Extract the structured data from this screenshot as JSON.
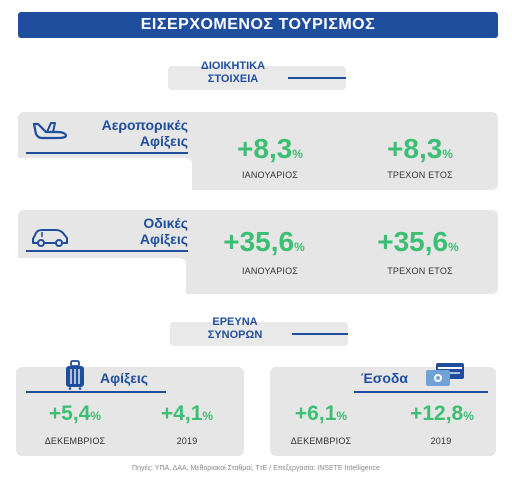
{
  "title": "ΕΙΣΕΡΧΟΜΕΝΟΣ ΤΟΥΡΙΣΜΟΣ",
  "admin_section": {
    "line1": "ΔΙΟΙΚΗΤΙΚΑ",
    "line2": "ΣΤΟΙΧΕΙΑ"
  },
  "air": {
    "title_line1": "Αεροπορικές",
    "title_line2": "Αφίξεις",
    "icon": "airplane-icon",
    "stats": [
      {
        "value": "+8,3",
        "unit": "%",
        "label": "ΙΑΝΟΥΑΡΙΟΣ"
      },
      {
        "value": "+8,3",
        "unit": "%",
        "label": "ΤΡΕΧΟΝ ΕΤΟΣ"
      }
    ]
  },
  "road": {
    "title_line1": "Οδικές",
    "title_line2": "Αφίξεις",
    "icon": "car-icon",
    "stats": [
      {
        "value": "+35,6",
        "unit": "%",
        "label": "ΙΑΝΟΥΑΡΙΟΣ"
      },
      {
        "value": "+35,6",
        "unit": "%",
        "label": "ΤΡΕΧΟΝ ΕΤΟΣ"
      }
    ]
  },
  "border_section": {
    "line1": "ΕΡΕΥΝΑ",
    "line2": "ΣΥΝΟΡΩΝ"
  },
  "arrivals": {
    "title": "Αφίξεις",
    "icon": "suitcase-icon",
    "stats": [
      {
        "value": "+5,4",
        "unit": "%",
        "label": "ΔΕΚΕΜΒΡΙΟΣ"
      },
      {
        "value": "+4,1",
        "unit": "%",
        "label": "2019"
      }
    ]
  },
  "receipts": {
    "title": "Έσοδα",
    "icon": "payment-card-icon",
    "stats": [
      {
        "value": "+6,1",
        "unit": "%",
        "label": "ΔΕΚΕΜΒΡΙΟΣ"
      },
      {
        "value": "+12,8",
        "unit": "%",
        "label": "2019"
      }
    ]
  },
  "footer": "Πηγές: ΥΠΑ, ΔΑΑ, Μεθοριακοί Σταθμοί, ΤτΕ / Επεξεργασία: INSETE Intelligence",
  "colors": {
    "brand_blue": "#1f4e9e",
    "value_green": "#3cbf72",
    "panel_gray": "#e6e6e6"
  }
}
